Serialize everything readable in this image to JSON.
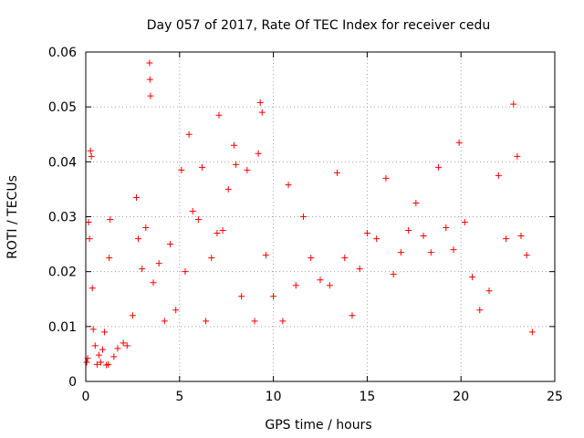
{
  "chart_data": {
    "type": "scatter",
    "title": "Day 057 of 2017, Rate Of TEC Index for receiver cedu",
    "xlabel": "GPS time / hours",
    "ylabel": "ROTI / TECUs",
    "xlim": [
      0,
      25
    ],
    "ylim": [
      0,
      0.06
    ],
    "x_ticks": [
      "0",
      "5",
      "10",
      "15",
      "20",
      "25"
    ],
    "y_ticks": [
      "0",
      "0.01",
      "0.02",
      "0.03",
      "0.04",
      "0.05",
      "0.06"
    ],
    "grid": true,
    "marker": "plus",
    "color": "#ff0000",
    "series": [
      {
        "name": "ROTI",
        "points": [
          [
            0.05,
            0.0035
          ],
          [
            0.1,
            0.0042
          ],
          [
            0.15,
            0.029
          ],
          [
            0.2,
            0.026
          ],
          [
            0.25,
            0.042
          ],
          [
            0.3,
            0.041
          ],
          [
            0.35,
            0.017
          ],
          [
            0.4,
            0.0095
          ],
          [
            0.5,
            0.0065
          ],
          [
            0.6,
            0.0031
          ],
          [
            0.7,
            0.0048
          ],
          [
            0.8,
            0.0035
          ],
          [
            0.9,
            0.0058
          ],
          [
            1.0,
            0.009
          ],
          [
            1.1,
            0.003
          ],
          [
            1.2,
            0.0031
          ],
          [
            1.25,
            0.0225
          ],
          [
            1.3,
            0.0295
          ],
          [
            1.5,
            0.0045
          ],
          [
            1.7,
            0.006
          ],
          [
            2.0,
            0.007
          ],
          [
            2.2,
            0.0065
          ],
          [
            2.5,
            0.012
          ],
          [
            2.7,
            0.0335
          ],
          [
            2.8,
            0.026
          ],
          [
            3.0,
            0.0205
          ],
          [
            3.2,
            0.028
          ],
          [
            3.4,
            0.058
          ],
          [
            3.42,
            0.055
          ],
          [
            3.45,
            0.052
          ],
          [
            3.6,
            0.018
          ],
          [
            3.9,
            0.0215
          ],
          [
            4.2,
            0.011
          ],
          [
            4.5,
            0.025
          ],
          [
            4.8,
            0.013
          ],
          [
            5.1,
            0.0385
          ],
          [
            5.3,
            0.02
          ],
          [
            5.5,
            0.045
          ],
          [
            5.7,
            0.031
          ],
          [
            6.0,
            0.0295
          ],
          [
            6.2,
            0.039
          ],
          [
            6.4,
            0.011
          ],
          [
            6.7,
            0.0225
          ],
          [
            7.0,
            0.027
          ],
          [
            7.1,
            0.0485
          ],
          [
            7.3,
            0.0275
          ],
          [
            7.6,
            0.035
          ],
          [
            7.9,
            0.043
          ],
          [
            8.0,
            0.0395
          ],
          [
            8.3,
            0.0155
          ],
          [
            8.6,
            0.0385
          ],
          [
            9.0,
            0.011
          ],
          [
            9.2,
            0.0415
          ],
          [
            9.3,
            0.0508
          ],
          [
            9.4,
            0.049
          ],
          [
            9.6,
            0.023
          ],
          [
            10.0,
            0.0155
          ],
          [
            10.5,
            0.011
          ],
          [
            10.8,
            0.0358
          ],
          [
            11.2,
            0.0175
          ],
          [
            11.6,
            0.03
          ],
          [
            12.0,
            0.0225
          ],
          [
            12.5,
            0.0185
          ],
          [
            13.0,
            0.0175
          ],
          [
            13.4,
            0.038
          ],
          [
            13.8,
            0.0225
          ],
          [
            14.2,
            0.012
          ],
          [
            14.6,
            0.0205
          ],
          [
            15.0,
            0.027
          ],
          [
            15.5,
            0.026
          ],
          [
            16.0,
            0.037
          ],
          [
            16.4,
            0.0195
          ],
          [
            16.8,
            0.0235
          ],
          [
            17.2,
            0.0275
          ],
          [
            17.6,
            0.0325
          ],
          [
            18.0,
            0.0265
          ],
          [
            18.4,
            0.0235
          ],
          [
            18.8,
            0.039
          ],
          [
            19.2,
            0.028
          ],
          [
            19.6,
            0.024
          ],
          [
            19.9,
            0.0435
          ],
          [
            20.2,
            0.029
          ],
          [
            20.6,
            0.019
          ],
          [
            21.0,
            0.013
          ],
          [
            21.5,
            0.0165
          ],
          [
            22.0,
            0.0375
          ],
          [
            22.4,
            0.026
          ],
          [
            22.8,
            0.0505
          ],
          [
            23.0,
            0.041
          ],
          [
            23.2,
            0.0265
          ],
          [
            23.5,
            0.023
          ],
          [
            23.8,
            0.009
          ]
        ]
      }
    ]
  }
}
